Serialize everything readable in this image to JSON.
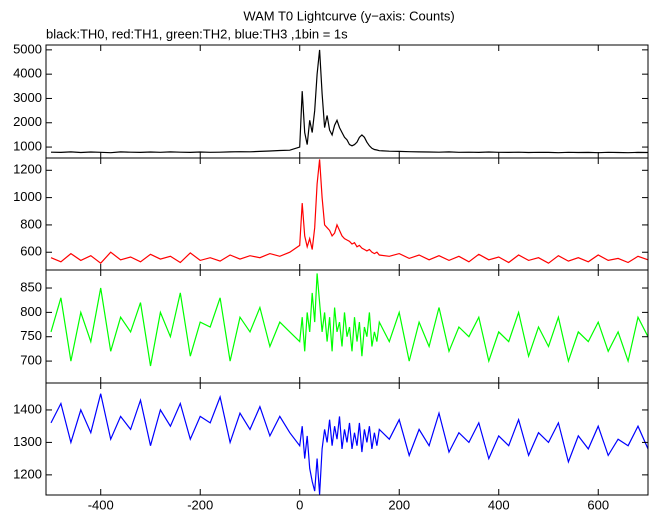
{
  "chart_data": {
    "type": "line",
    "title": "WAM T0 Lightcurve (y−axis: Counts)",
    "subtitle": "black:TH0, red:TH1, green:TH2, blue:TH3 ,1bin = 1s",
    "x": [
      -500,
      -480,
      -460,
      -440,
      -420,
      -400,
      -380,
      -360,
      -340,
      -320,
      -300,
      -280,
      -260,
      -240,
      -220,
      -200,
      -180,
      -160,
      -140,
      -120,
      -100,
      -80,
      -60,
      -40,
      -20,
      0,
      5,
      10,
      15,
      20,
      25,
      30,
      35,
      40,
      45,
      50,
      55,
      60,
      65,
      70,
      75,
      80,
      85,
      90,
      95,
      100,
      105,
      110,
      115,
      120,
      125,
      130,
      135,
      140,
      145,
      150,
      155,
      160,
      180,
      200,
      220,
      240,
      260,
      280,
      300,
      320,
      340,
      360,
      380,
      400,
      420,
      440,
      460,
      480,
      500,
      520,
      540,
      560,
      580,
      600,
      620,
      640,
      660,
      680,
      700
    ],
    "xlim": [
      -510,
      700
    ],
    "xticks": [
      -400,
      -200,
      0,
      200,
      400,
      600
    ],
    "panels": [
      {
        "ylim": [
          550,
          5200
        ],
        "yticks": [
          1000,
          2000,
          3000,
          4000,
          5000
        ],
        "series": [
          {
            "color": "#000000",
            "values": [
              790,
              780,
              800,
              775,
              795,
              785,
              770,
              800,
              790,
              780,
              795,
              785,
              800,
              790,
              780,
              795,
              785,
              790,
              800,
              810,
              805,
              820,
              840,
              860,
              870,
              1000,
              3300,
              1600,
              1100,
              2100,
              1600,
              2500,
              4000,
              5000,
              3200,
              1800,
              2300,
              1700,
              1500,
              1900,
              2100,
              1800,
              1600,
              1400,
              1300,
              1100,
              1050,
              1100,
              1200,
              1400,
              1500,
              1400,
              1200,
              1050,
              950,
              900,
              880,
              850,
              830,
              820,
              810,
              800,
              795,
              790,
              800,
              785,
              790,
              780,
              795,
              785,
              780,
              790,
              775,
              785,
              780,
              770,
              785,
              775,
              780,
              770,
              785,
              775,
              770,
              780,
              775
            ]
          }
        ]
      },
      {
        "ylim": [
          470,
          1290
        ],
        "yticks": [
          600,
          800,
          1000,
          1200
        ],
        "series": [
          {
            "color": "#ff0000",
            "values": [
              560,
              530,
              590,
              540,
              575,
              520,
              600,
              545,
              565,
              530,
              585,
              550,
              570,
              525,
              595,
              540,
              560,
              535,
              580,
              550,
              575,
              560,
              590,
              570,
              600,
              650,
              960,
              720,
              640,
              700,
              620,
              780,
              1100,
              1280,
              1000,
              800,
              780,
              760,
              720,
              740,
              800,
              760,
              720,
              700,
              690,
              680,
              660,
              670,
              640,
              650,
              630,
              620,
              610,
              620,
              600,
              590,
              600,
              580,
              570,
              590,
              555,
              580,
              545,
              575,
              540,
              570,
              530,
              585,
              545,
              565,
              525,
              580,
              540,
              560,
              520,
              575,
              535,
              560,
              530,
              580,
              540,
              555,
              525,
              570,
              545
            ]
          }
        ]
      },
      {
        "ylim": [
          655,
          887
        ],
        "yticks": [
          700,
          750,
          800,
          850
        ],
        "series": [
          {
            "color": "#00ff00",
            "values": [
              760,
              830,
              700,
              800,
              740,
              850,
              720,
              790,
              760,
              820,
              690,
              800,
              750,
              840,
              710,
              780,
              770,
              830,
              700,
              790,
              760,
              810,
              730,
              780,
              760,
              740,
              790,
              720,
              800,
              760,
              840,
              780,
              880,
              820,
              760,
              800,
              740,
              790,
              720,
              810,
              760,
              780,
              730,
              800,
              750,
              770,
              720,
              790,
              740,
              780,
              710,
              770,
              750,
              800,
              730,
              760,
              740,
              780,
              740,
              800,
              700,
              780,
              730,
              810,
              720,
              770,
              750,
              790,
              700,
              760,
              740,
              800,
              710,
              770,
              730,
              790,
              700,
              760,
              740,
              780,
              720,
              760,
              700,
              790,
              750
            ]
          }
        ]
      },
      {
        "ylim": [
          1138,
          1483
        ],
        "yticks": [
          1200,
          1300,
          1400
        ],
        "series": [
          {
            "color": "#0000ff",
            "values": [
              1360,
              1420,
              1300,
              1400,
              1330,
              1450,
              1310,
              1380,
              1340,
              1430,
              1290,
              1400,
              1350,
              1420,
              1310,
              1380,
              1360,
              1440,
              1300,
              1390,
              1340,
              1410,
              1320,
              1380,
              1330,
              1290,
              1350,
              1250,
              1320,
              1220,
              1180,
              1150,
              1250,
              1140,
              1280,
              1340,
              1300,
              1370,
              1290,
              1350,
              1310,
              1380,
              1280,
              1340,
              1300,
              1360,
              1280,
              1330,
              1290,
              1360,
              1270,
              1340,
              1300,
              1350,
              1280,
              1330,
              1290,
              1340,
              1310,
              1370,
              1260,
              1340,
              1290,
              1390,
              1270,
              1330,
              1300,
              1360,
              1250,
              1320,
              1290,
              1370,
              1260,
              1330,
              1300,
              1360,
              1240,
              1320,
              1280,
              1350,
              1260,
              1310,
              1290,
              1350,
              1280
            ]
          }
        ]
      }
    ]
  }
}
